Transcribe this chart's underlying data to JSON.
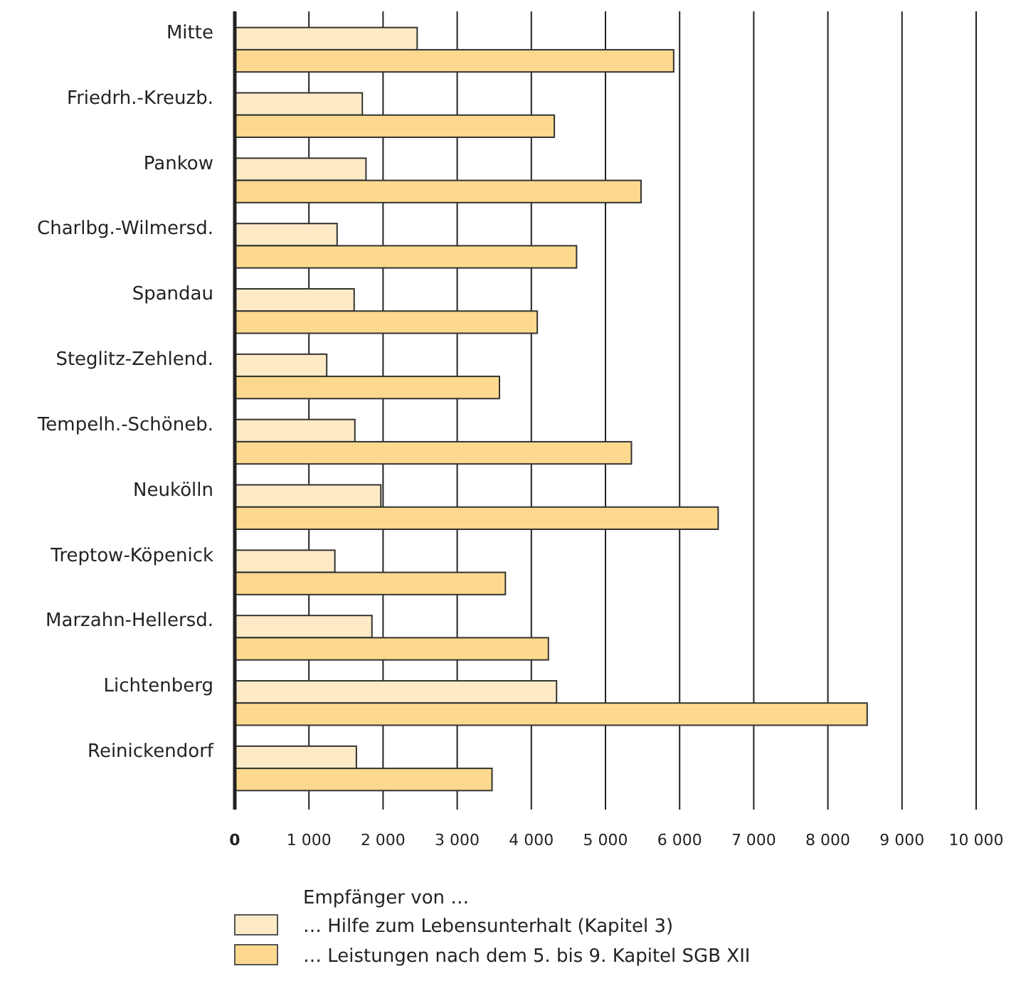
{
  "chart_data": {
    "type": "bar",
    "orientation": "horizontal",
    "categories": [
      "Mitte",
      "Friedrh.-Kreuzb.",
      "Pankow",
      "Charlbg.-Wilmersd.",
      "Spandau",
      "Steglitz-Zehlend.",
      "Tempelh.-Schöneb.",
      "Neukölln",
      "Treptow-Köpenick",
      "Marzahn-Hellersd.",
      "Lichtenberg",
      "Reinickendorf"
    ],
    "series": [
      {
        "name": "… Hilfe zum Lebensunterhalt (Kapitel 3)",
        "color": "#feebc6",
        "values": [
          2460,
          1720,
          1770,
          1380,
          1610,
          1240,
          1620,
          1970,
          1350,
          1850,
          4340,
          1640
        ]
      },
      {
        "name": "… Leistungen nach dem 5. bis 9. Kapitel SGB XII",
        "color": "#fdd98f",
        "values": [
          5920,
          4310,
          5480,
          4610,
          4080,
          3570,
          5350,
          6520,
          3650,
          4230,
          8530,
          3470
        ]
      }
    ],
    "xlim": [
      0,
      10000
    ],
    "xticks": [
      0,
      {
        "value": 1000,
        "label": "1 000"
      },
      {
        "value": 2000,
        "label": "2 000"
      },
      {
        "value": 3000,
        "label": "3 000"
      },
      {
        "value": 4000,
        "label": "4 000"
      },
      {
        "value": 5000,
        "label": "5 000"
      },
      {
        "value": 6000,
        "label": "6 000"
      },
      {
        "value": 7000,
        "label": "7 000"
      },
      {
        "value": 8000,
        "label": "8 000"
      },
      {
        "value": 9000,
        "label": "9 000"
      },
      {
        "value": 10000,
        "label": "10 000"
      }
    ],
    "grid": "x",
    "legend": "bottom",
    "legend_title": "Empfänger von …"
  }
}
